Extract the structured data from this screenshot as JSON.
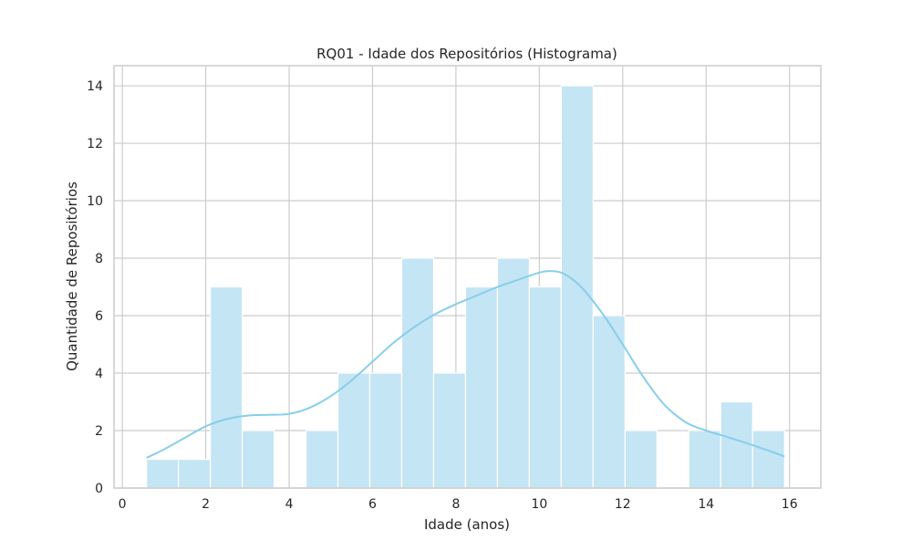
{
  "chart_data": {
    "type": "bar",
    "subtype": "histogram-with-kde",
    "title": "RQ01 - Idade dos Repositórios (Histograma)",
    "xlabel": "Idade (anos)",
    "ylabel": "Quantidade de Repositórios",
    "xlim": [
      -0.2,
      16.75
    ],
    "ylim": [
      0,
      14.7
    ],
    "xticks": [
      0,
      2,
      4,
      6,
      8,
      10,
      12,
      14,
      16
    ],
    "yticks": [
      0,
      2,
      4,
      6,
      8,
      10,
      12,
      14
    ],
    "grid": true,
    "bins": [
      {
        "x0": 0.58,
        "x1": 1.345,
        "count": 1
      },
      {
        "x0": 1.345,
        "x1": 2.11,
        "count": 1
      },
      {
        "x0": 2.11,
        "x1": 2.875,
        "count": 7
      },
      {
        "x0": 2.875,
        "x1": 3.64,
        "count": 2
      },
      {
        "x0": 3.64,
        "x1": 4.405,
        "count": 0
      },
      {
        "x0": 4.405,
        "x1": 5.17,
        "count": 2
      },
      {
        "x0": 5.17,
        "x1": 5.935,
        "count": 4
      },
      {
        "x0": 5.935,
        "x1": 6.7,
        "count": 4
      },
      {
        "x0": 6.7,
        "x1": 7.465,
        "count": 8
      },
      {
        "x0": 7.465,
        "x1": 8.23,
        "count": 4
      },
      {
        "x0": 8.23,
        "x1": 8.995,
        "count": 7
      },
      {
        "x0": 8.995,
        "x1": 9.76,
        "count": 8
      },
      {
        "x0": 9.76,
        "x1": 10.525,
        "count": 7
      },
      {
        "x0": 10.525,
        "x1": 11.29,
        "count": 14
      },
      {
        "x0": 11.29,
        "x1": 12.055,
        "count": 6
      },
      {
        "x0": 12.055,
        "x1": 12.82,
        "count": 2
      },
      {
        "x0": 12.82,
        "x1": 13.585,
        "count": 0
      },
      {
        "x0": 13.585,
        "x1": 14.35,
        "count": 2
      },
      {
        "x0": 14.35,
        "x1": 15.115,
        "count": 3
      },
      {
        "x0": 15.115,
        "x1": 15.88,
        "count": 2
      }
    ],
    "kde": {
      "x": [
        0.58,
        1.0,
        1.5,
        2.0,
        2.5,
        3.0,
        3.5,
        4.0,
        4.5,
        5.0,
        5.5,
        6.0,
        6.5,
        7.0,
        7.5,
        8.0,
        8.5,
        9.0,
        9.5,
        10.0,
        10.3,
        10.6,
        11.0,
        11.5,
        12.0,
        12.5,
        13.0,
        13.5,
        14.0,
        14.5,
        15.0,
        15.5,
        15.88
      ],
      "y": [
        1.05,
        1.35,
        1.75,
        2.15,
        2.4,
        2.52,
        2.55,
        2.58,
        2.8,
        3.2,
        3.75,
        4.4,
        5.05,
        5.6,
        6.05,
        6.4,
        6.7,
        7.0,
        7.25,
        7.5,
        7.55,
        7.45,
        7.0,
        6.1,
        5.0,
        3.85,
        2.9,
        2.3,
        2.0,
        1.78,
        1.55,
        1.3,
        1.1
      ]
    },
    "colors": {
      "bar_fill": "#c4e5f3",
      "bar_edge": "#ffffff",
      "kde_line": "#87ceeb",
      "grid": "#cccccc",
      "frame": "#cccccc"
    }
  }
}
